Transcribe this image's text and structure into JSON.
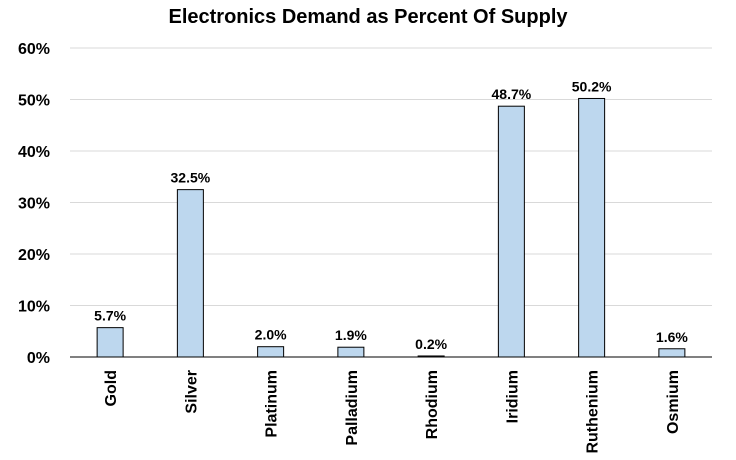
{
  "chart_data": {
    "type": "bar",
    "title": "Electronics Demand as Percent Of Supply",
    "categories": [
      "Gold",
      "Silver",
      "Platinum",
      "Palladium",
      "Rhodium",
      "Iridium",
      "Ruthenium",
      "Osmium"
    ],
    "values": [
      5.7,
      32.5,
      2.0,
      1.9,
      0.2,
      48.7,
      50.2,
      1.6
    ],
    "data_labels": [
      "5.7%",
      "32.5%",
      "2.0%",
      "1.9%",
      "0.2%",
      "48.7%",
      "50.2%",
      "1.6%"
    ],
    "yticks": [
      0,
      10,
      20,
      30,
      40,
      50,
      60
    ],
    "ytick_labels": [
      "0%",
      "10%",
      "20%",
      "30%",
      "40%",
      "50%",
      "60%"
    ],
    "ylim": [
      0,
      60
    ],
    "xlabel": "",
    "ylabel": "",
    "grid": true,
    "legend": "none",
    "colors": {
      "bar_fill": "#bdd7ee",
      "bar_stroke": "#000000",
      "grid": "#d9d9d9",
      "axis": "#000000"
    }
  }
}
